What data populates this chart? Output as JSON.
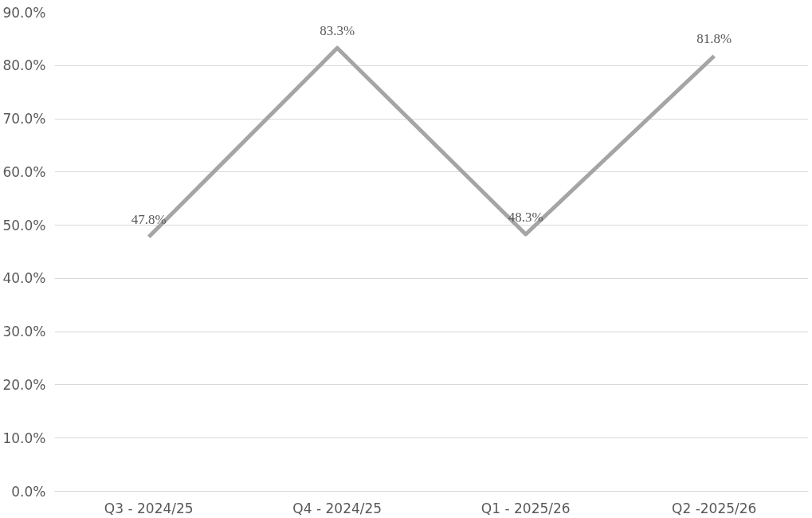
{
  "chart_data": {
    "type": "line",
    "categories": [
      "Q3 - 2024/25",
      "Q4 - 2024/25",
      "Q1 - 2025/26",
      "Q2 -2025/26"
    ],
    "series": [
      {
        "color": "#a5a5a5",
        "values": [
          47.8,
          83.3,
          48.3,
          81.8
        ],
        "value_labels": [
          "47.8%",
          "83.3%",
          "48.3%",
          "81.8%"
        ]
      }
    ],
    "ylim": [
      0,
      90
    ],
    "yticks": [
      {
        "value": 0,
        "label": "0.0%"
      },
      {
        "value": 10,
        "label": "10.0%"
      },
      {
        "value": 20,
        "label": "20.0%"
      },
      {
        "value": 30,
        "label": "30.0%"
      },
      {
        "value": 40,
        "label": "40.0%"
      },
      {
        "value": 50,
        "label": "50.0%"
      },
      {
        "value": 60,
        "label": "60.0%"
      },
      {
        "value": 70,
        "label": "70.0%"
      },
      {
        "value": 80,
        "label": "80.0%"
      },
      {
        "value": 90,
        "label": "90.0%"
      }
    ],
    "grid": "y",
    "marker": "none",
    "line_style": "solid"
  }
}
